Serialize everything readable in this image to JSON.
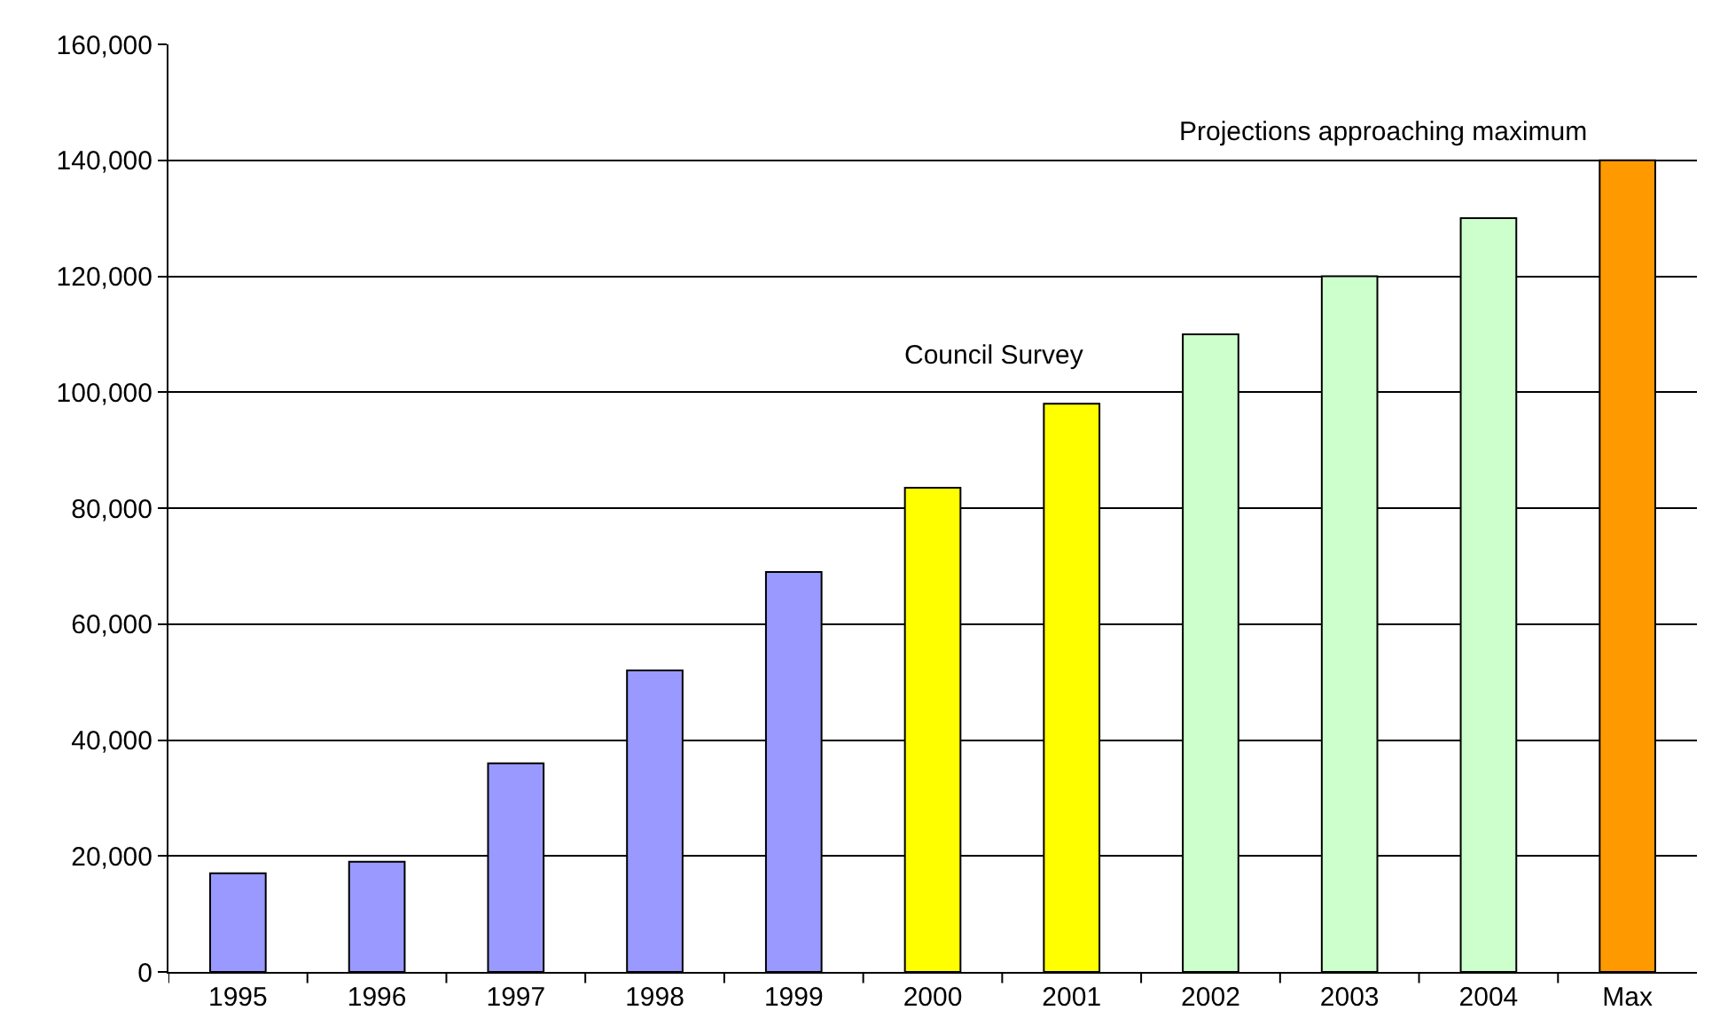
{
  "chart_data": {
    "type": "bar",
    "categories": [
      "1995",
      "1996",
      "1997",
      "1998",
      "1999",
      "2000",
      "2001",
      "2002",
      "2003",
      "2004",
      "Max"
    ],
    "values": [
      17000,
      19000,
      36000,
      52000,
      69000,
      83500,
      98000,
      110000,
      120000,
      130000,
      140000
    ],
    "colors": [
      "#9999ff",
      "#9999ff",
      "#9999ff",
      "#9999ff",
      "#9999ff",
      "#ffff00",
      "#ffff00",
      "#ccffcc",
      "#ccffcc",
      "#ccffcc",
      "#ff9900"
    ],
    "ylim": [
      0,
      160000
    ],
    "yticks": [
      {
        "value": 0,
        "label": "0"
      },
      {
        "value": 20000,
        "label": "20,000"
      },
      {
        "value": 40000,
        "label": "40,000"
      },
      {
        "value": 60000,
        "label": "60,000"
      },
      {
        "value": 80000,
        "label": "80,000"
      },
      {
        "value": 100000,
        "label": "100,000"
      },
      {
        "value": 120000,
        "label": "120,000"
      },
      {
        "value": 140000,
        "label": "140,000"
      },
      {
        "value": 160000,
        "label": "160,000"
      }
    ],
    "grid": "y",
    "annotations": [
      "Council Survey",
      "Projections approaching maximum"
    ]
  }
}
